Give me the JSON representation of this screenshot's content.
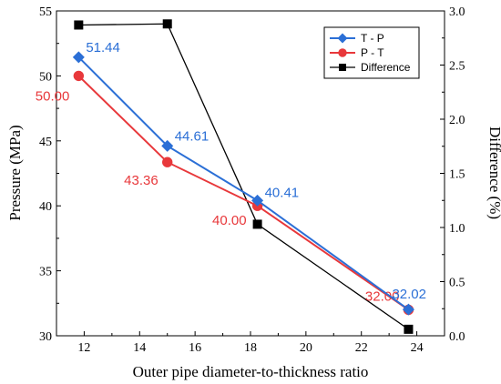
{
  "chart_data": {
    "type": "line",
    "xlabel": "Outer pipe diameter-to-thickness ratio",
    "ylabel": "Pressure (MPa)",
    "y2label": "Difference (%)",
    "xlim": [
      11,
      25
    ],
    "ylim": [
      30,
      55
    ],
    "y2lim": [
      0,
      3.0
    ],
    "xticks": [
      12,
      14,
      16,
      18,
      20,
      22,
      24
    ],
    "yticks": [
      30,
      35,
      40,
      45,
      50,
      55
    ],
    "y2ticks": [
      "0.0",
      "0.5",
      "1.0",
      "1.5",
      "2.0",
      "2.5",
      "3.0"
    ],
    "legend_position": "top-right",
    "x": [
      11.8,
      15.0,
      18.25,
      23.7
    ],
    "series": [
      {
        "name": "T - P",
        "axis": "left",
        "color": "#2b6fd6",
        "marker": "diamond",
        "values": [
          51.44,
          44.61,
          40.41,
          32.02
        ],
        "labels": [
          "51.44",
          "44.61",
          "40.41",
          "32.02"
        ]
      },
      {
        "name": "P - T",
        "axis": "left",
        "color": "#e8383b",
        "marker": "circle",
        "values": [
          50.0,
          43.36,
          40.0,
          32.0
        ],
        "labels": [
          "50.00",
          "43.36",
          "40.00",
          "32.00"
        ]
      },
      {
        "name": "Difference",
        "axis": "right",
        "color": "#000000",
        "marker": "square",
        "values": [
          2.87,
          2.88,
          1.03,
          0.06
        ]
      }
    ]
  }
}
